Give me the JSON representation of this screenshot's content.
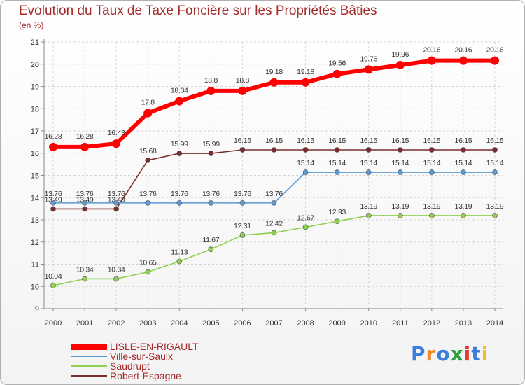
{
  "chart_data": {
    "type": "line",
    "title": "Evolution du Taux de Taxe Foncière sur les Propriétés Bâties",
    "subtitle": "(en %)",
    "xlabel": "",
    "ylabel": "",
    "ylim": [
      9,
      21
    ],
    "yticks": [
      9,
      10,
      11,
      12,
      13,
      14,
      15,
      16,
      17,
      18,
      19,
      20,
      21
    ],
    "grid": true,
    "legend_position": "bottom-left",
    "categories": [
      "2000",
      "2001",
      "2002",
      "2003",
      "2004",
      "2005",
      "2006",
      "2007",
      "2008",
      "2009",
      "2010",
      "2011",
      "2012",
      "2013",
      "2014"
    ],
    "series": [
      {
        "name": "LISLE-EN-RIGAULT",
        "color": "#ff0000",
        "values": [
          16.28,
          16.28,
          16.43,
          17.8,
          18.34,
          18.8,
          18.8,
          19.18,
          19.18,
          19.56,
          19.76,
          19.96,
          20.16,
          20.16,
          20.16
        ],
        "labels": [
          "16.28",
          "16.28",
          "16.43",
          "17.8",
          "18.34",
          "18.8",
          "18.8",
          "19.18",
          "19.18",
          "19.56",
          "19.76",
          "19.96",
          "20.16",
          "20.16",
          "20.16"
        ]
      },
      {
        "name": "Ville-sur-Saulx",
        "color": "#5b9bd5",
        "values": [
          13.76,
          13.76,
          13.76,
          13.76,
          13.76,
          13.76,
          13.76,
          13.76,
          15.14,
          15.14,
          15.14,
          15.14,
          15.14,
          15.14,
          15.14
        ],
        "labels": [
          "13.76",
          "13.76",
          "13.76",
          "13.76",
          "13.76",
          "13.76",
          "13.76",
          "13.76",
          "15.14",
          "15.14",
          "15.14",
          "15.14",
          "15.14",
          "15.14",
          "15.14"
        ]
      },
      {
        "name": "Saudrupt",
        "color": "#8fd14f",
        "values": [
          10.04,
          10.34,
          10.34,
          10.65,
          11.13,
          11.67,
          12.31,
          12.42,
          12.67,
          12.93,
          13.19,
          13.19,
          13.19,
          13.19,
          13.19
        ],
        "labels": [
          "10.04",
          "10.34",
          "10.34",
          "10.65",
          "11.13",
          "11.67",
          "12.31",
          "12.42",
          "12.67",
          "12.93",
          "13.19",
          "13.19",
          "13.19",
          "13.19",
          "13.19"
        ]
      },
      {
        "name": "Robert-Espagne",
        "color": "#7b2c2c",
        "values": [
          13.49,
          13.49,
          13.49,
          15.68,
          15.99,
          15.99,
          16.15,
          16.15,
          16.15,
          16.15,
          16.15,
          16.15,
          16.15,
          16.15,
          16.15
        ],
        "labels": [
          "13.49",
          "13.49",
          "13.49",
          "15.68",
          "15.99",
          "15.99",
          "16.15",
          "16.15",
          "16.15",
          "16.15",
          "16.15",
          "16.15",
          "16.15",
          "16.15",
          "16.15"
        ]
      }
    ]
  },
  "brand": {
    "logo_letters": [
      "P",
      "r",
      "o",
      "x",
      "i",
      "t",
      "i"
    ],
    "logo_colors": [
      "#3b7dd8",
      "#f08a24",
      "#3b7dd8",
      "#2e9e3e",
      "#e03c31",
      "#3b7dd8",
      "#f0c020"
    ]
  }
}
